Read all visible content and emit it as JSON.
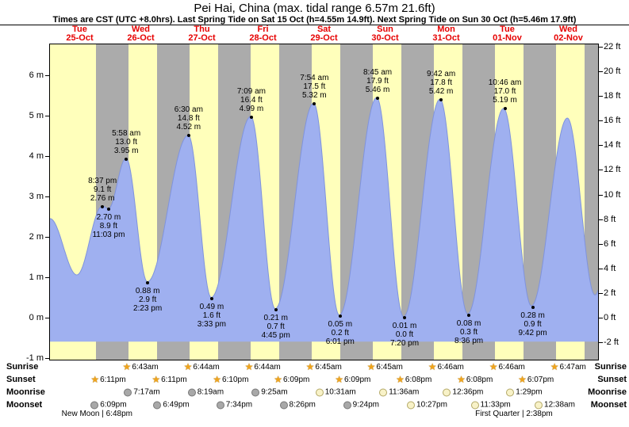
{
  "title": "Pei Hai, China (max. tidal range 6.57m 21.6ft)",
  "subtitle": "Times are CST (UTC +8.0hrs). Last Spring Tide on Sat 15 Oct (h=4.55m 14.9ft). Next Spring Tide on Sun 30 Oct (h=5.46m 17.9ft)",
  "days": [
    {
      "name": "Tue",
      "date": "25-Oct"
    },
    {
      "name": "Wed",
      "date": "26-Oct"
    },
    {
      "name": "Thu",
      "date": "27-Oct"
    },
    {
      "name": "Fri",
      "date": "28-Oct"
    },
    {
      "name": "Sat",
      "date": "29-Oct"
    },
    {
      "name": "Sun",
      "date": "30-Oct"
    },
    {
      "name": "Mon",
      "date": "31-Oct"
    },
    {
      "name": "Tue",
      "date": "01-Nov"
    },
    {
      "name": "Wed",
      "date": "02-Nov"
    }
  ],
  "chart_data": {
    "type": "area",
    "title": "Pei Hai, China (max. tidal range 6.57m 21.6ft)",
    "hours_span": 216,
    "ylim_m": [
      -1.06,
      6.84
    ],
    "y_left": {
      "unit": "m",
      "labels": [
        "6 m",
        "5 m",
        "4 m",
        "3 m",
        "2 m",
        "1 m",
        "0 m",
        "-1 m"
      ],
      "values": [
        6,
        5,
        4,
        3,
        2,
        1,
        0,
        -1
      ]
    },
    "y_right": {
      "unit": "ft",
      "labels": [
        "22 ft",
        "20 ft",
        "18 ft",
        "16 ft",
        "14 ft",
        "12 ft",
        "10 ft",
        "8 ft",
        "6 ft",
        "4 ft",
        "2 ft",
        "0 ft",
        "-2 ft"
      ],
      "values": [
        22,
        20,
        18,
        16,
        14,
        12,
        10,
        8,
        6,
        4,
        2,
        0,
        -2
      ]
    },
    "baseline_m": -0.61,
    "night_band_hours": {
      "sunset_offset": 18.17,
      "sunrise_offset": 30.72
    },
    "extremes": [
      {
        "t": 0,
        "h": 2.45,
        "estimated": true
      },
      {
        "t": 10.6,
        "h": 1.05,
        "estimated": true
      },
      {
        "t": 20.62,
        "h": 2.76,
        "kind": "high",
        "lines": [
          "8:37 pm",
          "9.1 ft",
          "2.76 m"
        ]
      },
      {
        "t": 23.05,
        "h": 2.7,
        "kind": "low",
        "lines": [
          "2.70 m",
          "8.9 ft",
          "11:03 pm"
        ]
      },
      {
        "t": 29.97,
        "h": 3.95,
        "kind": "high",
        "lines": [
          "5:58 am",
          "13.0 ft",
          "3.95 m"
        ]
      },
      {
        "t": 38.38,
        "h": 0.88,
        "kind": "low",
        "lines": [
          "0.88 m",
          "2.9 ft",
          "2:23 pm"
        ]
      },
      {
        "t": 54.5,
        "h": 4.52,
        "kind": "high",
        "lines": [
          "6:30 am",
          "14.8 ft",
          "4.52 m"
        ]
      },
      {
        "t": 63.55,
        "h": 0.49,
        "kind": "low",
        "lines": [
          "0.49 m",
          "1.6 ft",
          "3:33 pm"
        ]
      },
      {
        "t": 79.15,
        "h": 4.99,
        "kind": "high",
        "lines": [
          "7:09 am",
          "16.4 ft",
          "4.99 m"
        ]
      },
      {
        "t": 88.75,
        "h": 0.21,
        "kind": "low",
        "lines": [
          "0.21 m",
          "0.7 ft",
          "4:45 pm"
        ]
      },
      {
        "t": 103.9,
        "h": 5.32,
        "kind": "high",
        "lines": [
          "7:54 am",
          "17.5 ft",
          "5.32 m"
        ]
      },
      {
        "t": 114.02,
        "h": 0.05,
        "kind": "low",
        "lines": [
          "0.05 m",
          "0.2 ft",
          "6:01 pm"
        ]
      },
      {
        "t": 128.75,
        "h": 5.46,
        "kind": "high",
        "lines": [
          "8:45 am",
          "17.9 ft",
          "5.46 m"
        ]
      },
      {
        "t": 139.33,
        "h": 0.01,
        "kind": "low",
        "lines": [
          "0.01 m",
          "0.0 ft",
          "7:20 pm"
        ]
      },
      {
        "t": 153.7,
        "h": 5.42,
        "kind": "high",
        "lines": [
          "9:42 am",
          "17.8 ft",
          "5.42 m"
        ]
      },
      {
        "t": 164.6,
        "h": 0.08,
        "kind": "low",
        "lines": [
          "0.08 m",
          "0.3 ft",
          "8:36 pm"
        ]
      },
      {
        "t": 178.77,
        "h": 5.19,
        "kind": "high",
        "lines": [
          "10:46 am",
          "17.0 ft",
          "5.19 m"
        ]
      },
      {
        "t": 189.7,
        "h": 0.28,
        "kind": "low",
        "lines": [
          "0.28 m",
          "0.9 ft",
          "9:42 pm"
        ]
      },
      {
        "t": 203.9,
        "h": 4.95,
        "estimated": true
      },
      {
        "t": 214.8,
        "h": 0.55,
        "estimated": true
      },
      {
        "t": 226,
        "h": 4.8,
        "estimated": true
      }
    ],
    "colors": {
      "day_band": "#ffffbb",
      "night_band": "#ababab",
      "tide_fill": "#9fb0f0",
      "tide_stroke": "#7f93dd",
      "day_label_red": "#e60000"
    }
  },
  "astro": {
    "rows": [
      {
        "label": "Sunrise",
        "icon": "sun",
        "events": [
          {
            "t": 30.72,
            "time": "6:43am"
          },
          {
            "t": 54.73,
            "time": "6:44am"
          },
          {
            "t": 78.73,
            "time": "6:44am"
          },
          {
            "t": 102.75,
            "time": "6:45am"
          },
          {
            "t": 126.75,
            "time": "6:45am"
          },
          {
            "t": 150.77,
            "time": "6:46am"
          },
          {
            "t": 174.77,
            "time": "6:46am"
          },
          {
            "t": 198.78,
            "time": "6:47am"
          }
        ]
      },
      {
        "label": "Sunset",
        "icon": "sun",
        "events": [
          {
            "t": 18.18,
            "time": "6:11pm"
          },
          {
            "t": 42.18,
            "time": "6:11pm"
          },
          {
            "t": 66.17,
            "time": "6:10pm"
          },
          {
            "t": 90.15,
            "time": "6:09pm"
          },
          {
            "t": 114.15,
            "time": "6:09pm"
          },
          {
            "t": 138.13,
            "time": "6:08pm"
          },
          {
            "t": 162.13,
            "time": "6:08pm"
          },
          {
            "t": 186.12,
            "time": "6:07pm"
          }
        ]
      },
      {
        "label": "Moonrise",
        "icon": "moon",
        "events": [
          {
            "t": 31.28,
            "time": "7:17am",
            "lit": false
          },
          {
            "t": 56.32,
            "time": "8:19am",
            "lit": false
          },
          {
            "t": 81.42,
            "time": "9:25am",
            "lit": false
          },
          {
            "t": 106.52,
            "time": "10:31am",
            "lit": true
          },
          {
            "t": 131.6,
            "time": "11:36am",
            "lit": true
          },
          {
            "t": 156.6,
            "time": "12:36pm",
            "lit": true
          },
          {
            "t": 181.48,
            "time": "1:29pm",
            "lit": true
          }
        ]
      },
      {
        "label": "Moonset",
        "icon": "moon",
        "events": [
          {
            "t": 18.15,
            "time": "6:09pm",
            "lit": false
          },
          {
            "t": 42.82,
            "time": "6:49pm",
            "lit": false
          },
          {
            "t": 67.57,
            "time": "7:34pm",
            "lit": false
          },
          {
            "t": 92.43,
            "time": "8:26pm",
            "lit": false
          },
          {
            "t": 117.4,
            "time": "9:24pm",
            "lit": false
          },
          {
            "t": 142.45,
            "time": "10:27pm",
            "lit": true
          },
          {
            "t": 167.55,
            "time": "11:33pm",
            "lit": true
          },
          {
            "t": 192.63,
            "time": "12:38am",
            "lit": true
          }
        ]
      }
    ],
    "phases": [
      {
        "t": 18.8,
        "label": "New Moon | 6:48pm"
      },
      {
        "t": 182.63,
        "label": "First Quarter | 2:38pm"
      }
    ]
  }
}
